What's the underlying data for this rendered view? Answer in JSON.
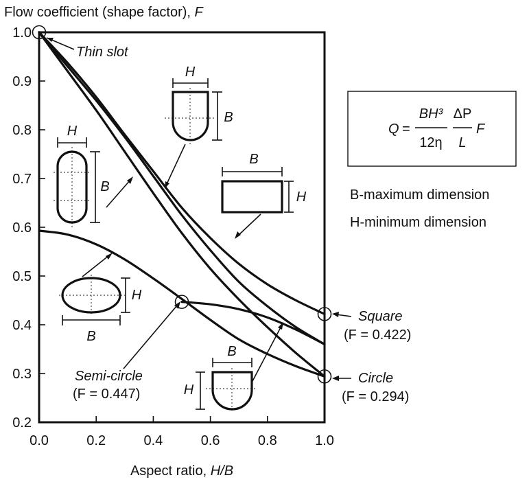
{
  "chart_data": {
    "type": "line",
    "title": "Flow coefficient (shape factor), F",
    "xlabel": "Aspect ratio, H/B",
    "ylabel": "",
    "xlim": [
      0.0,
      1.0
    ],
    "ylim": [
      0.2,
      1.0
    ],
    "x_ticks": [
      "0.0",
      "0.2",
      "0.4",
      "0.6",
      "0.8",
      "1.0"
    ],
    "y_ticks": [
      "0.2",
      "0.3",
      "0.4",
      "0.5",
      "0.6",
      "0.7",
      "0.8",
      "0.9",
      "1.0"
    ],
    "grid": false,
    "series": [
      {
        "shape": "rectangle",
        "x": [
          0.0,
          0.1,
          0.2,
          0.3,
          0.4,
          0.5,
          0.6,
          0.7,
          0.8,
          0.9,
          1.0
        ],
        "y": [
          1.0,
          0.937,
          0.867,
          0.79,
          0.715,
          0.64,
          0.578,
          0.525,
          0.483,
          0.45,
          0.422
        ]
      },
      {
        "shape": "rounded-end slot",
        "x": [
          0.0,
          0.1,
          0.2,
          0.3,
          0.4,
          0.5,
          0.6,
          0.7,
          0.8,
          0.9,
          1.0
        ],
        "y": [
          1.0,
          0.92,
          0.84,
          0.755,
          0.67,
          0.588,
          0.515,
          0.452,
          0.395,
          0.342,
          0.294
        ]
      },
      {
        "shape": "semi-circular end duct",
        "x": [
          0.0,
          0.1,
          0.2,
          0.3,
          0.4,
          0.5,
          0.6,
          0.7,
          0.8,
          0.9,
          1.0
        ],
        "y": [
          1.0,
          0.93,
          0.86,
          0.785,
          0.705,
          0.625,
          0.553,
          0.488,
          0.438,
          0.395,
          0.36
        ]
      },
      {
        "shape": "ellipse",
        "x": [
          0.0,
          0.1,
          0.2,
          0.3,
          0.4,
          0.5,
          0.6,
          0.7,
          0.8,
          0.9,
          1.0
        ],
        "y": [
          0.593,
          0.585,
          0.565,
          0.534,
          0.495,
          0.453,
          0.41,
          0.37,
          0.34,
          0.315,
          0.294
        ]
      },
      {
        "shape": "semi-circle to semi-circular duct",
        "x": [
          0.5,
          0.6,
          0.7,
          0.8,
          0.9,
          1.0
        ],
        "y": [
          0.447,
          0.442,
          0.432,
          0.415,
          0.39,
          0.36
        ]
      }
    ],
    "points": [
      {
        "x": 0.0,
        "y": 1.0,
        "label": "Thin slot"
      },
      {
        "x": 1.0,
        "y": 0.422,
        "label": "Square",
        "sublabel": "(F = 0.422)"
      },
      {
        "x": 1.0,
        "y": 0.294,
        "label": "Circle",
        "sublabel": "(F = 0.294)"
      },
      {
        "x": 0.5,
        "y": 0.447,
        "label": "Semi-circle",
        "sublabel": "(F = 0.447)"
      }
    ],
    "shape_dim_labels": {
      "H": "H",
      "B": "B"
    },
    "equation": {
      "lhs": "Q",
      "num1": "BH³",
      "den1": "12η",
      "num2": "ΔP",
      "den2": "L",
      "tail": "F"
    },
    "notes": [
      "B-maximum dimension",
      "H-minimum dimension"
    ]
  }
}
